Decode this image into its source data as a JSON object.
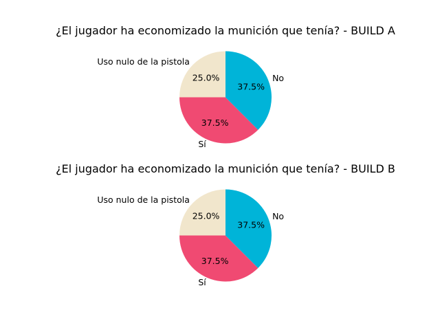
{
  "chart_data": [
    {
      "type": "pie",
      "title": "¿El jugador ha economizado la munición que tenía? - BUILD A",
      "start_angle_deg": 90,
      "direction": "counterclockwise",
      "slices": [
        {
          "label": "Uso nulo de la pistola",
          "value": 25.0,
          "pct_label": "25.0%",
          "color": "#f1e6cc"
        },
        {
          "label": "Sí",
          "value": 37.5,
          "pct_label": "37.5%",
          "color": "#f04a72"
        },
        {
          "label": "No",
          "value": 37.5,
          "pct_label": "37.5%",
          "color": "#00b4d8"
        }
      ]
    },
    {
      "type": "pie",
      "title": "¿El jugador ha economizado la munición que tenía? - BUILD B",
      "start_angle_deg": 90,
      "direction": "counterclockwise",
      "slices": [
        {
          "label": "Uso nulo de la pistola",
          "value": 25.0,
          "pct_label": "25.0%",
          "color": "#f1e6cc"
        },
        {
          "label": "Sí",
          "value": 37.5,
          "pct_label": "37.5%",
          "color": "#f04a72"
        },
        {
          "label": "No",
          "value": 37.5,
          "pct_label": "37.5%",
          "color": "#00b4d8"
        }
      ]
    }
  ]
}
